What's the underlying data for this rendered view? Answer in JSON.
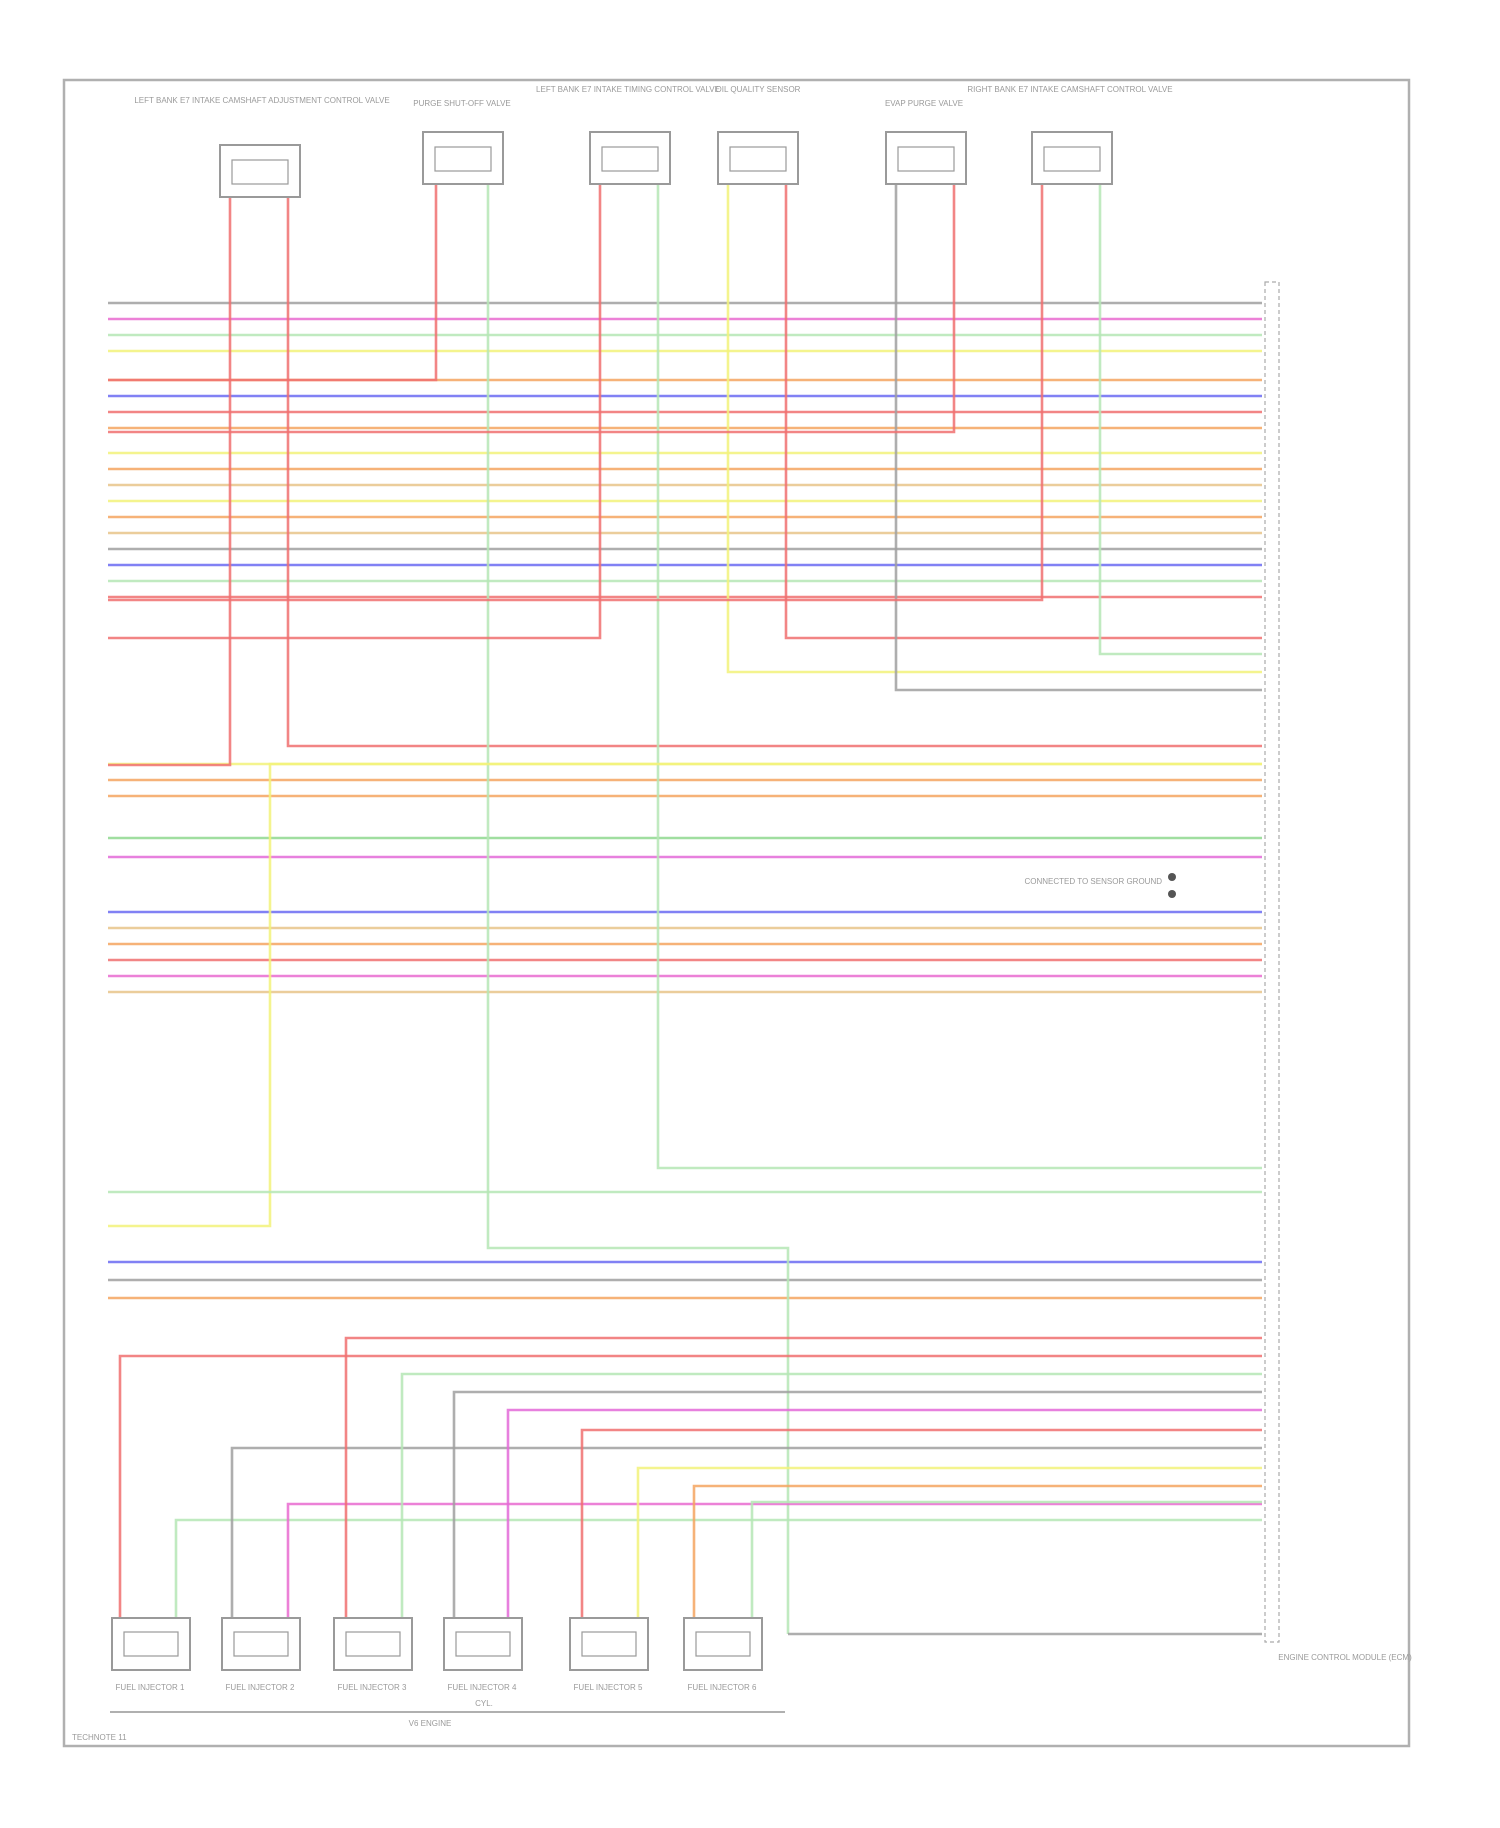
{
  "top_components": [
    {
      "id": "top1",
      "label": "LEFT BANK E7 INTAKE CAMSHAFT ADJUSTMENT CONTROL VALVE"
    },
    {
      "id": "top2",
      "label": "PURGE SHUT-OFF VALVE"
    },
    {
      "id": "top3",
      "label": "LEFT BANK E7 INTAKE TIMING CONTROL VALVE"
    },
    {
      "id": "top4",
      "label": "OIL QUALITY SENSOR"
    },
    {
      "id": "top5",
      "label": "EVAP PURGE VALVE"
    },
    {
      "id": "top6",
      "label": "RIGHT BANK E7 INTAKE CAMSHAFT CONTROL VALVE"
    }
  ],
  "bottom_components": [
    {
      "id": "b1",
      "label": "FUEL INJECTOR 1"
    },
    {
      "id": "b2",
      "label": "FUEL INJECTOR 2"
    },
    {
      "id": "b3",
      "label": "FUEL INJECTOR 3"
    },
    {
      "id": "b4",
      "label": "FUEL INJECTOR 4"
    },
    {
      "id": "b5",
      "label": "FUEL INJECTOR 5"
    },
    {
      "id": "b6",
      "label": "FUEL INJECTOR 6"
    }
  ],
  "bottom_group_label": "V6 ENGINE",
  "bottom_group_sublabel": "CYL.",
  "ecm_label": "ENGINE CONTROL MODULE (ECM)",
  "splice_note": "CONNECTED TO SENSOR GROUND",
  "footer_code": "TECHNOTE 11",
  "colors": {
    "red": "#f07070",
    "pink": "#e96bd0",
    "green": "#8fd88f",
    "yellow": "#f2f27a",
    "orange": "#f5a560",
    "blue": "#6b6bf2",
    "gray": "#a0a0a0",
    "lightgreen": "#b5e6b5",
    "tan": "#e8c48a",
    "magenta": "#e36ad8"
  }
}
